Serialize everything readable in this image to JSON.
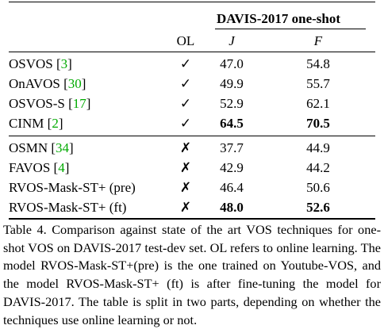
{
  "table": {
    "dataset_header": "DAVIS-2017 one-shot",
    "col_ol": "OL",
    "col_j": "J",
    "col_f": "F",
    "rows": [
      {
        "method": "OSVOS",
        "ref": "3",
        "ol": "✓",
        "j": "47.0",
        "f": "54.8",
        "j_bold": false,
        "f_bold": false
      },
      {
        "method": "OnAVOS",
        "ref": "30",
        "ol": "✓",
        "j": "49.9",
        "f": "55.7",
        "j_bold": false,
        "f_bold": false
      },
      {
        "method": "OSVOS-S",
        "ref": "17",
        "ol": "✓",
        "j": "52.9",
        "f": "62.1",
        "j_bold": false,
        "f_bold": false
      },
      {
        "method": "CINM",
        "ref": "2",
        "ol": "✓",
        "j": "64.5",
        "f": "70.5",
        "j_bold": true,
        "f_bold": true
      },
      {
        "method": "OSMN",
        "ref": "34",
        "ol": "✗",
        "j": "37.7",
        "f": "44.9",
        "j_bold": false,
        "f_bold": false
      },
      {
        "method": "FAVOS",
        "ref": "4",
        "ol": "✗",
        "j": "42.9",
        "f": "44.2",
        "j_bold": false,
        "f_bold": false
      },
      {
        "method": "RVOS-Mask-ST+ (pre)",
        "ref": "",
        "ol": "✗",
        "j": "46.4",
        "f": "50.6",
        "j_bold": false,
        "f_bold": false
      },
      {
        "method": "RVOS-Mask-ST+ (ft)",
        "ref": "",
        "ol": "✗",
        "j": "48.0",
        "f": "52.6",
        "j_bold": true,
        "f_bold": true
      }
    ]
  },
  "caption": "Table 4. Comparison against state of the art VOS techniques for one-shot VOS on DAVIS-2017 test-dev set. OL refers to online learning. The model RVOS-Mask-ST+(pre) is the one trained on Youtube-VOS, and the model RVOS-Mask-ST+ (ft) is after fine-tuning the model for DAVIS-2017. The table is split in two parts, depending on whether the techniques use online learning or not."
}
